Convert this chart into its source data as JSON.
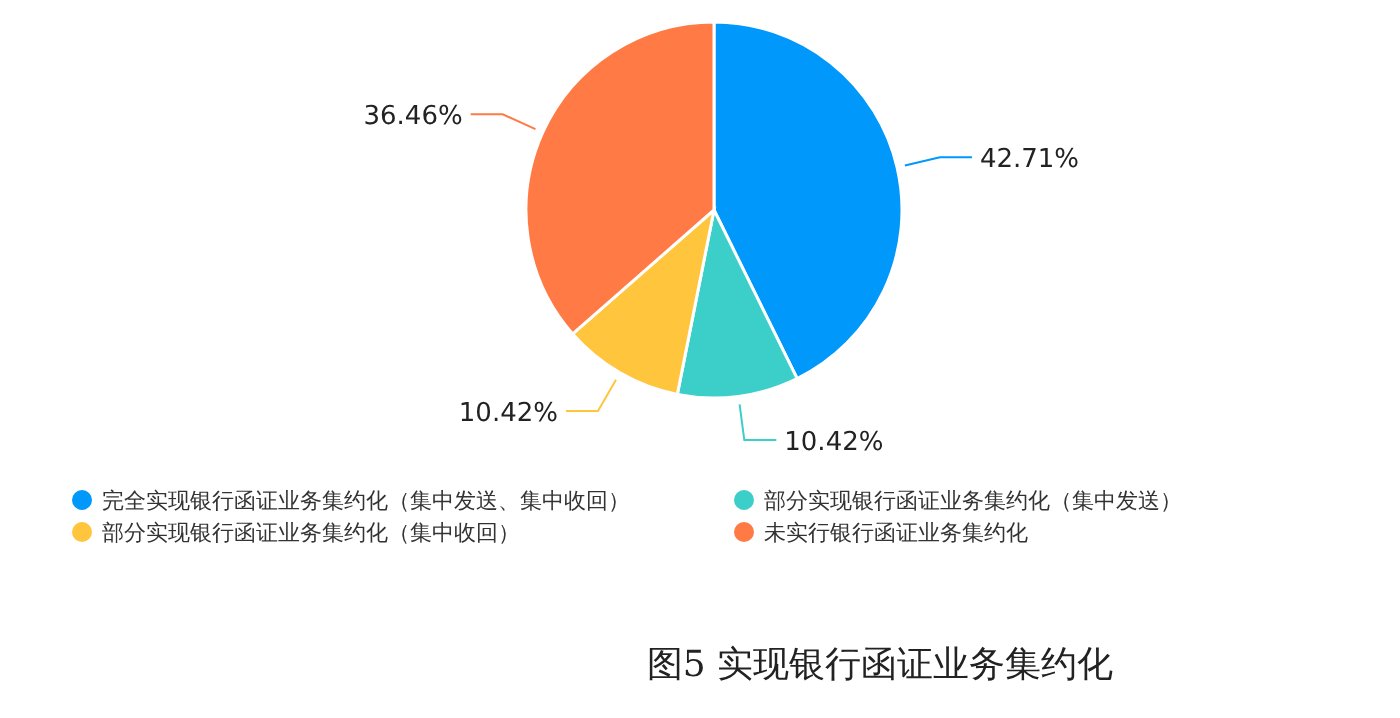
{
  "chart_data": {
    "type": "pie",
    "title": "图5  实现银行函证业务集约化",
    "categories": [
      "完全实现银行函证业务集约化（集中发送、集中收回）",
      "部分实现银行函证业务集约化（集中发送）",
      "部分实现银行函证业务集约化（集中收回）",
      "未实行银行函证业务集约化"
    ],
    "values": [
      42.71,
      10.42,
      10.42,
      36.46
    ],
    "value_labels": [
      "42.71%",
      "10.42%",
      "10.42%",
      "36.46%"
    ],
    "colors": [
      "#0098fb",
      "#3ccfc9",
      "#ffc53d",
      "#ff7a45"
    ],
    "legend": "bottom"
  }
}
